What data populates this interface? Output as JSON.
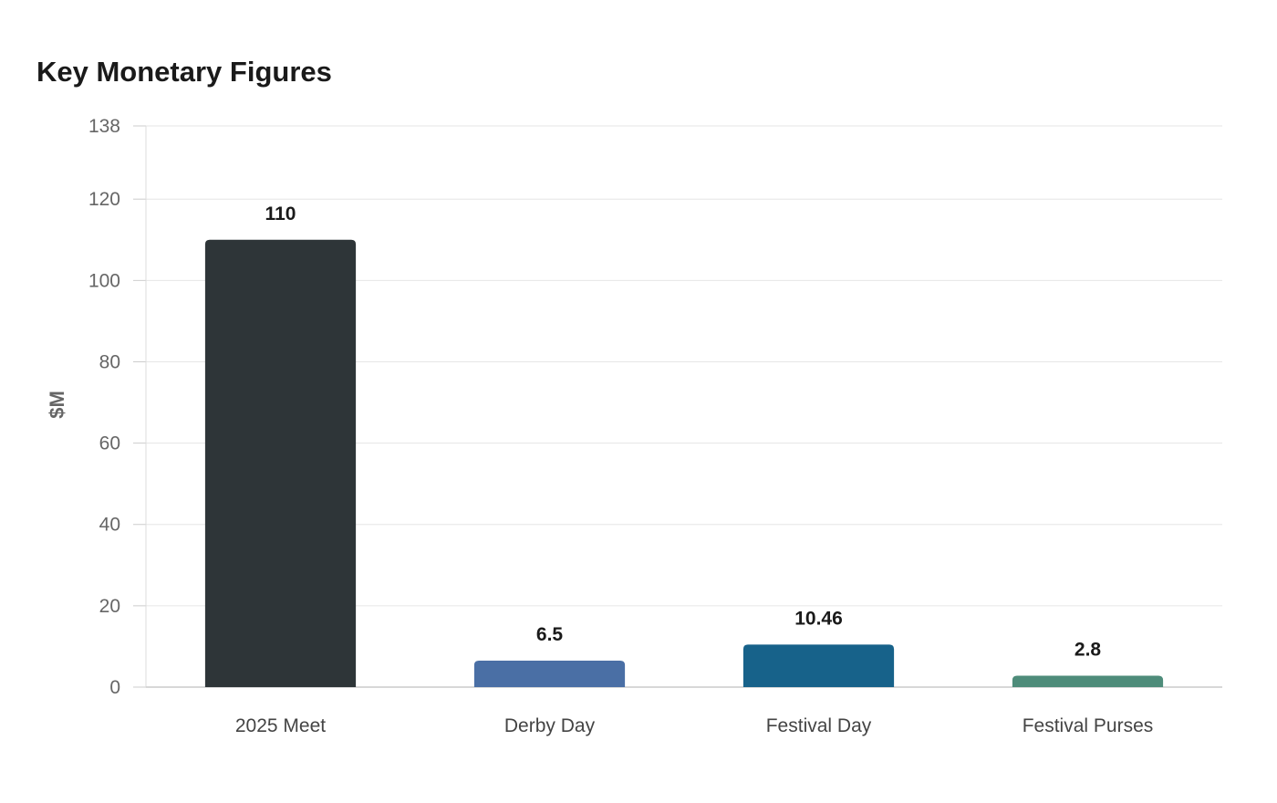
{
  "chart_data": {
    "type": "bar",
    "title": "Key Monetary Figures",
    "xlabel": "",
    "ylabel": "$M",
    "categories": [
      "2025 Meet",
      "Derby Day",
      "Festival Day",
      "Festival Purses"
    ],
    "values": [
      110,
      6.5,
      10.46,
      2.8
    ],
    "value_labels": [
      "110",
      "6.5",
      "10.46",
      "2.8"
    ],
    "colors": [
      "#2e3538",
      "#4a6fa5",
      "#17628a",
      "#4e8c7a"
    ],
    "ylim": [
      0,
      138
    ],
    "yticks": [
      0,
      20,
      40,
      60,
      80,
      100,
      120,
      138
    ],
    "grid": true,
    "legend": "none"
  }
}
